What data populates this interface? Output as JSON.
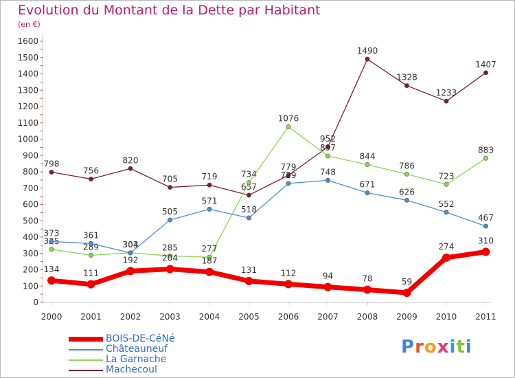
{
  "title": "Evolution du Montant de la Dette par Habitant",
  "subtitle": "(en €)",
  "brand": {
    "text": "Proxiti",
    "letter_colors": [
      "#3f86d8",
      "#e2562d",
      "#f0a020",
      "#e43b6a",
      "#2a9ed8",
      "#8ac23a",
      "#3f86d8"
    ]
  },
  "chart_data": {
    "type": "line",
    "x": [
      "2000",
      "2001",
      "2002",
      "2003",
      "2004",
      "2005",
      "2006",
      "2007",
      "2008",
      "2009",
      "2010",
      "2011"
    ],
    "ylim": [
      0,
      1600
    ],
    "yticks": [
      "0",
      "100",
      "200",
      "300",
      "400",
      "500",
      "600",
      "700",
      "800",
      "900",
      "1000",
      "1100",
      "1200",
      "1300",
      "1400",
      "1500",
      "1600"
    ],
    "grid": false,
    "legend_placement": "bottom-left",
    "series": [
      {
        "name": "Machecoul",
        "color": "#7a1f2b",
        "values": [
          798,
          756,
          820,
          705,
          719,
          657,
          779,
          952,
          1490,
          1328,
          1233,
          1407
        ],
        "labels": [
          "798",
          "756",
          "820",
          "705",
          "719",
          "657",
          "779",
          "952",
          "1490",
          "1328",
          "1233",
          "1407"
        ]
      },
      {
        "name": "La Garnache",
        "color": "#8ed654",
        "values": [
          325,
          289,
          304,
          285,
          277,
          734,
          1076,
          897,
          844,
          786,
          723,
          883
        ],
        "labels": [
          "325",
          "289",
          "304",
          "285",
          "277",
          "734",
          "1076",
          "897",
          "844",
          "786",
          "723",
          "883"
        ]
      },
      {
        "name": "Châteauneuf",
        "color": "#4a90d0",
        "values": [
          373,
          361,
          303,
          505,
          571,
          518,
          729,
          748,
          671,
          626,
          552,
          467
        ],
        "labels": [
          "373",
          "361",
          "303",
          "505",
          "571",
          "518",
          "729",
          "748",
          "671",
          "626",
          "552",
          "467"
        ]
      },
      {
        "name": "BOIS-DE-CéNé",
        "color": "#f20000",
        "values": [
          134,
          111,
          192,
          204,
          187,
          131,
          112,
          94,
          78,
          59,
          274,
          310
        ],
        "labels": [
          "134",
          "111",
          "192",
          "204",
          "187",
          "131",
          "112",
          "94",
          "78",
          "59",
          "274",
          "310"
        ]
      }
    ],
    "legend": [
      "BOIS-DE-CéNé",
      "Châteauneuf",
      "La Garnache",
      "Machecoul"
    ]
  }
}
